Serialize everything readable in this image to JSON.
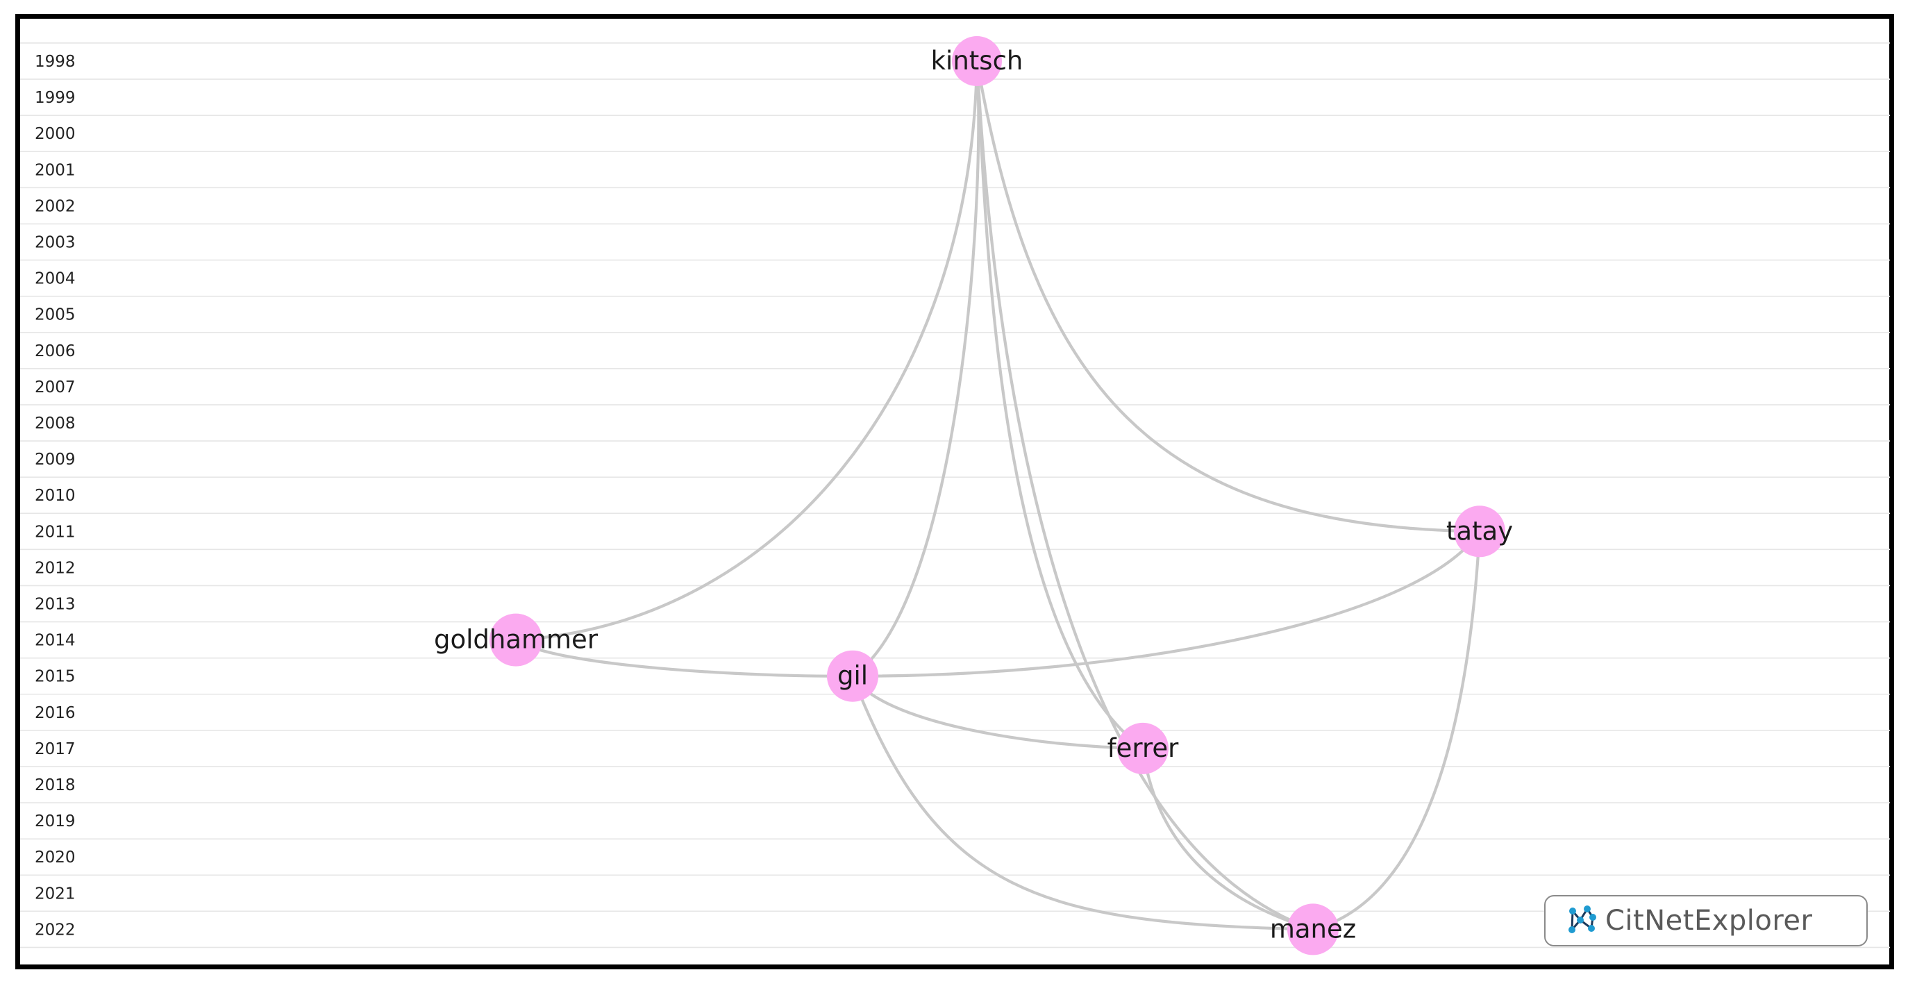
{
  "timeline": {
    "years": [
      "1998",
      "1999",
      "2000",
      "2001",
      "2002",
      "2003",
      "2004",
      "2005",
      "2006",
      "2007",
      "2008",
      "2009",
      "2010",
      "2011",
      "2012",
      "2013",
      "2014",
      "2015",
      "2016",
      "2017",
      "2018",
      "2019",
      "2020",
      "2021",
      "2022"
    ]
  },
  "nodes": [
    {
      "id": "kintsch",
      "label": "kintsch",
      "year": 1998
    },
    {
      "id": "tatay",
      "label": "tatay",
      "year": 2011
    },
    {
      "id": "goldhammer",
      "label": "goldhammer",
      "year": 2014
    },
    {
      "id": "gil",
      "label": "gil",
      "year": 2015
    },
    {
      "id": "ferrer",
      "label": "ferrer",
      "year": 2017
    },
    {
      "id": "manez",
      "label": "manez",
      "year": 2022
    }
  ],
  "edges": [
    {
      "from": "kintsch",
      "to": "goldhammer"
    },
    {
      "from": "kintsch",
      "to": "gil"
    },
    {
      "from": "kintsch",
      "to": "ferrer"
    },
    {
      "from": "kintsch",
      "to": "manez"
    },
    {
      "from": "kintsch",
      "to": "tatay"
    },
    {
      "from": "goldhammer",
      "to": "gil"
    },
    {
      "from": "tatay",
      "to": "gil"
    },
    {
      "from": "gil",
      "to": "ferrer"
    },
    {
      "from": "gil",
      "to": "manez"
    },
    {
      "from": "ferrer",
      "to": "manez"
    },
    {
      "from": "tatay",
      "to": "manez"
    }
  ],
  "style": {
    "node_color": "#fbaaf0",
    "edge_color": "#c8c8c8"
  },
  "logo": {
    "text": "CitNetExplorer",
    "icon": "network-icon",
    "icon_color": "#1f9bd1"
  }
}
